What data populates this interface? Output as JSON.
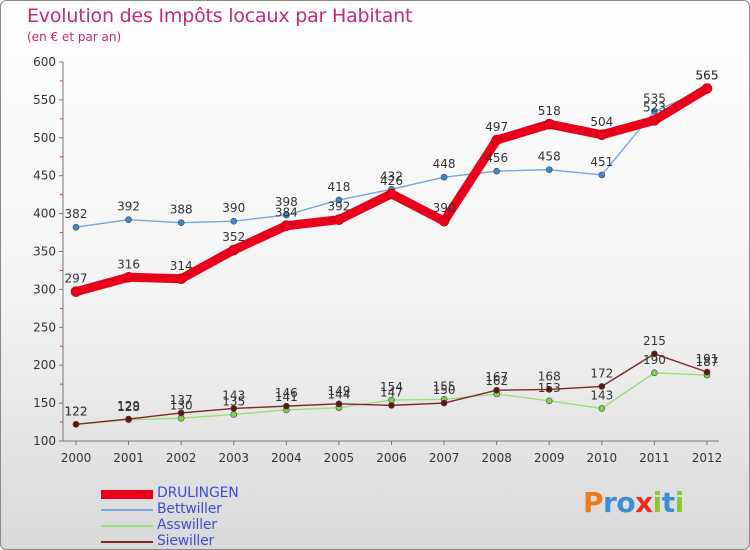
{
  "header": {
    "title": "Evolution des Impôts locaux par Habitant",
    "subtitle": "(en € et par an)"
  },
  "chart_data": {
    "type": "line",
    "title": "Evolution des Impôts locaux par Habitant",
    "subtitle": "(en € et par an)",
    "x": [
      2000,
      2001,
      2002,
      2003,
      2004,
      2005,
      2006,
      2007,
      2008,
      2009,
      2010,
      2011,
      2012
    ],
    "ylim": [
      100,
      600
    ],
    "yticks": [
      100,
      150,
      200,
      250,
      300,
      350,
      400,
      450,
      500,
      550,
      600
    ],
    "grid": false,
    "series": [
      {
        "name": "DRULINGEN",
        "color": "#e8001c",
        "marker": "#e8001c",
        "values": [
          297,
          316,
          314,
          352,
          384,
          392,
          426,
          390,
          497,
          518,
          504,
          523,
          565
        ],
        "labels": [
          "297",
          "316",
          "314",
          "352",
          "384",
          "392",
          "426",
          "390",
          "497",
          "518",
          "504",
          "523",
          "565"
        ]
      },
      {
        "name": "Bettwiller",
        "color": "#7aa6d8",
        "marker": "#3a89d6",
        "values": [
          382,
          392,
          388,
          390,
          398,
          418,
          432,
          448,
          456,
          458,
          451,
          535,
          565
        ],
        "labels": [
          "382",
          "392",
          "388",
          "390",
          "398",
          "418",
          "432",
          "448",
          "456",
          "458",
          "451",
          "535",
          "565"
        ]
      },
      {
        "name": "Asswiller",
        "color": "#9edc7a",
        "marker": "#7fd14a",
        "values": [
          122,
          128,
          130,
          135,
          141,
          144,
          154,
          155,
          162,
          153,
          143,
          190,
          187
        ],
        "labels": [
          "122",
          "128",
          "130",
          "135",
          "141",
          "144",
          "154",
          "155",
          "162",
          "153",
          "143",
          "190",
          "187"
        ]
      },
      {
        "name": "Siewiller",
        "color": "#7a2a2a",
        "marker": "#6b1010",
        "values": [
          122,
          129,
          137,
          143,
          146,
          149,
          147,
          150,
          167,
          168,
          172,
          215,
          191
        ],
        "labels": [
          "122",
          "129",
          "137",
          "143",
          "146",
          "149",
          "147",
          "150",
          "167",
          "168",
          "172",
          "215",
          "191"
        ]
      }
    ],
    "legend_position": "bottom-left"
  },
  "legend": {
    "items": [
      {
        "label": "DRULINGEN",
        "color": "#e8001c"
      },
      {
        "label": "Bettwiller",
        "color": "#7aa6d8"
      },
      {
        "label": "Asswiller",
        "color": "#9edc7a"
      },
      {
        "label": "Siewiller",
        "color": "#7a2a2a"
      }
    ]
  },
  "logo": {
    "letters": [
      "P",
      "r",
      "o",
      "x",
      "i",
      "t",
      "i"
    ],
    "colors": [
      "#f07a1a",
      "#3a8fd6",
      "#3a8fd6",
      "#e8301c",
      "#8ac43a",
      "#3a8fd6",
      "#8ac43a"
    ]
  }
}
